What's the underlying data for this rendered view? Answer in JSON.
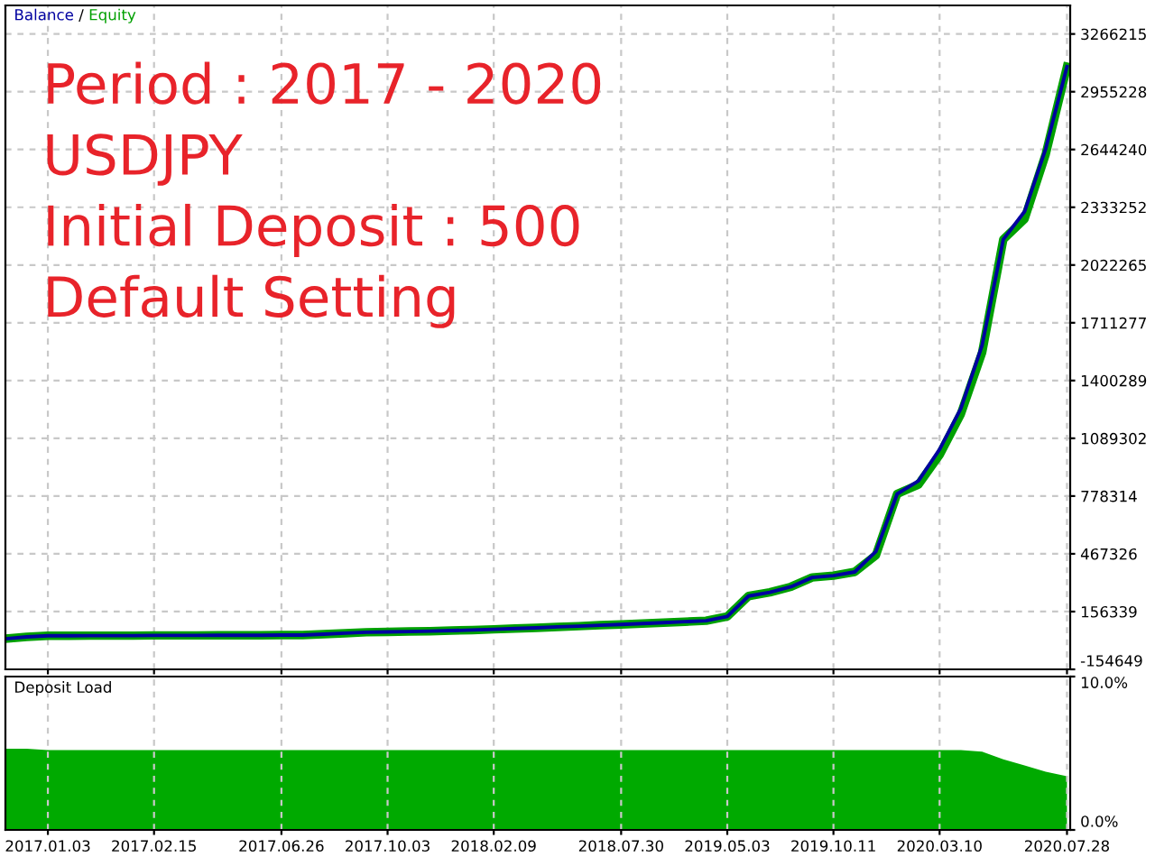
{
  "chart_data": [
    {
      "type": "line",
      "legend": "top left",
      "legend_title": "/",
      "categories": [
        null,
        null,
        "2017.01.03",
        null,
        null,
        null,
        null,
        "2017.02.15",
        null,
        null,
        null,
        null,
        null,
        "2017.06.26",
        null,
        null,
        null,
        null,
        "2017.10.03",
        null,
        null,
        null,
        null,
        "2018.02.09",
        null,
        null,
        null,
        null,
        null,
        "2018.07.30",
        null,
        null,
        null,
        null,
        "2019.05.03",
        null,
        null,
        null,
        null,
        "2019.10.11",
        null,
        null,
        null,
        null,
        "2020.03.10",
        null,
        null,
        null,
        null,
        null,
        "2020.07.28"
      ],
      "series": [
        {
          "name": "Equity",
          "color": "#00a000",
          "values": [
            10000,
            20000,
            26000,
            26000,
            27000,
            27000,
            27000,
            28000,
            28000,
            28000,
            29000,
            29000,
            29000,
            30000,
            30000,
            35000,
            40000,
            45000,
            47000,
            49000,
            51000,
            54000,
            57000,
            61000,
            65000,
            69000,
            74000,
            78000,
            83000,
            87000,
            92000,
            97000,
            102000,
            107000,
            130000,
            240000,
            260000,
            290000,
            340000,
            350000,
            370000,
            460000,
            790000,
            840000,
            1000000,
            1220000,
            1550000,
            2160000,
            2270000,
            2620000,
            3090000
          ]
        },
        {
          "name": "Balance",
          "color": "#0000a0",
          "values": [
            10000,
            20000,
            26000,
            26000,
            27000,
            27000,
            27000,
            28000,
            28000,
            28000,
            29000,
            29000,
            29000,
            30000,
            30000,
            35000,
            40000,
            45000,
            47000,
            49000,
            51000,
            54000,
            57000,
            61000,
            65000,
            69000,
            74000,
            78000,
            83000,
            87000,
            92000,
            97000,
            102000,
            107000,
            130000,
            240000,
            260000,
            290000,
            340000,
            350000,
            370000,
            480000,
            790000,
            860000,
            1030000,
            1250000,
            1590000,
            2160000,
            2310000,
            2650000,
            3090000
          ]
        }
      ],
      "ylim": [
        -154649,
        3420000
      ],
      "yticks": [
        -154649,
        156339,
        467326,
        778314,
        1089302,
        1400289,
        1711277,
        2022265,
        2333252,
        2644240,
        2955228,
        3266215
      ],
      "tick_labels": "y",
      "grid": true,
      "line_style": "solid",
      "annotations": [
        "Period : 2017 - 2020",
        "USDJPY",
        "Initial Deposit : 500",
        "Default Setting"
      ]
    },
    {
      "type": "area",
      "title": "Deposit Load",
      "categories": [
        null,
        null,
        "2017.01.03",
        null,
        null,
        null,
        null,
        "2017.02.15",
        null,
        null,
        null,
        null,
        null,
        "2017.06.26",
        null,
        null,
        null,
        null,
        "2017.10.03",
        null,
        null,
        null,
        null,
        "2018.02.09",
        null,
        null,
        null,
        null,
        null,
        "2018.07.30",
        null,
        null,
        null,
        null,
        "2019.05.03",
        null,
        null,
        null,
        null,
        "2019.10.11",
        null,
        null,
        null,
        null,
        "2020.03.10",
        null,
        null,
        null,
        null,
        null,
        "2020.07.28"
      ],
      "series": [
        {
          "color": "#00aa00",
          "values": [
            5.3,
            5.3,
            5.2,
            5.2,
            5.2,
            5.2,
            5.2,
            5.2,
            5.2,
            5.2,
            5.2,
            5.2,
            5.2,
            5.2,
            5.2,
            5.2,
            5.2,
            5.2,
            5.2,
            5.2,
            5.2,
            5.2,
            5.2,
            5.2,
            5.2,
            5.2,
            5.2,
            5.2,
            5.2,
            5.2,
            5.2,
            5.2,
            5.2,
            5.2,
            5.2,
            5.2,
            5.2,
            5.2,
            5.2,
            5.2,
            5.2,
            5.2,
            5.2,
            5.2,
            5.2,
            5.2,
            5.1,
            4.6,
            4.2,
            3.8,
            3.5
          ]
        }
      ],
      "ylim": [
        0,
        10
      ],
      "yticks": [
        {
          "value": 0,
          "label": "0.0%"
        },
        {
          "value": 10,
          "label": "10.0%"
        }
      ],
      "grid": "x"
    }
  ]
}
